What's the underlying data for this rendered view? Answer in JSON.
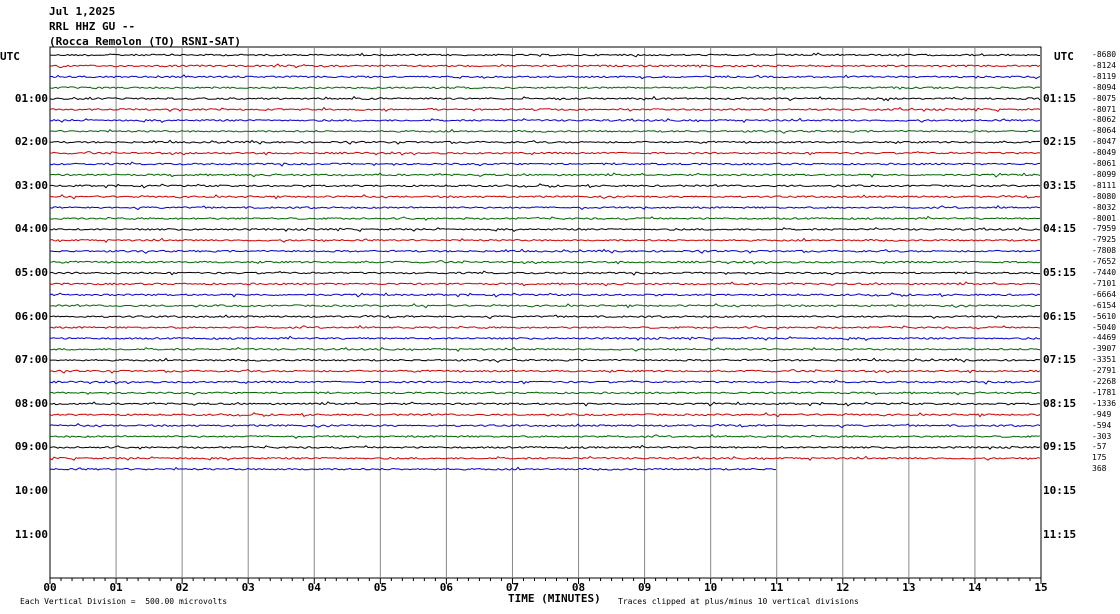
{
  "header": {
    "date": "Jul 1,2025",
    "station": "RRL HHZ GU --",
    "location": "(Rocca Remolon (TO) RSNI-SAT)"
  },
  "utc_left": "UTC",
  "utc_right": "UTC",
  "footer": {
    "scale": "Each Vertical Division =  500.00 microvolts",
    "xlabel": "TIME (MINUTES)",
    "clip": "Traces clipped at plus/minus 10 vertical divisions"
  },
  "chart_data": {
    "type": "line",
    "title": "RRL HHZ GU --",
    "xlabel": "TIME (MINUTES)",
    "x_ticks": [
      "00",
      "01",
      "02",
      "03",
      "04",
      "05",
      "06",
      "07",
      "08",
      "09",
      "10",
      "11",
      "12",
      "13",
      "14",
      "15"
    ],
    "xlim": [
      0,
      15
    ],
    "left_hour_labels": [
      "01:00",
      "02:00",
      "03:00",
      "04:00",
      "05:00",
      "06:00",
      "07:00",
      "08:00",
      "09:00",
      "10:00",
      "11:00"
    ],
    "right_hour_labels": [
      "01:15",
      "02:15",
      "03:15",
      "04:15",
      "05:15",
      "06:15",
      "07:15",
      "08:15",
      "09:15",
      "10:15",
      "11:15"
    ],
    "trace_colors": [
      "#000000",
      "#cc0000",
      "#0000cc",
      "#006600"
    ],
    "trace_offsets": [
      "-8680",
      "-8124",
      "-8119",
      "-8094",
      "-8075",
      "-8071",
      "-8062",
      "-8064",
      "-8047",
      "-8049",
      "-8061",
      "-8099",
      "-8111",
      "-8080",
      "-8032",
      "-8001",
      "-7959",
      "-7925",
      "-7808",
      "-7652",
      "-7440",
      "-7101",
      "-6664",
      "-6154",
      "-5610",
      "-5040",
      "-4469",
      "-3907",
      "-3351",
      "-2791",
      "-2268",
      "-1781",
      "-1336",
      "-949",
      "-594",
      "-303",
      "-57",
      "175",
      "368"
    ],
    "last_trace_end_minute": 11,
    "grid": true
  }
}
